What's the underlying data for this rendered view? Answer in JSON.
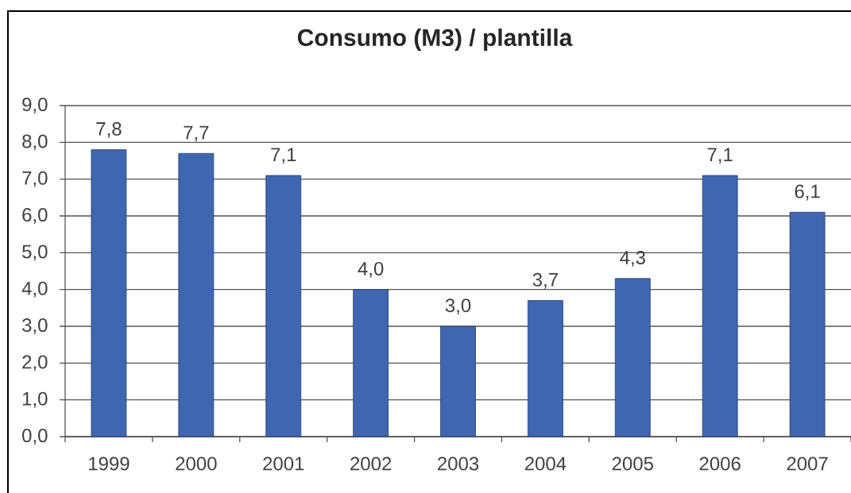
{
  "chart_data": {
    "type": "bar",
    "title": "Consumo (M3) / plantilla",
    "categories": [
      "1999",
      "2000",
      "2001",
      "2002",
      "2003",
      "2004",
      "2005",
      "2006",
      "2007"
    ],
    "values": [
      7.8,
      7.7,
      7.1,
      4.0,
      3.0,
      3.7,
      4.3,
      7.1,
      6.1
    ],
    "value_labels": [
      "7,8",
      "7,7",
      "7,1",
      "4,0",
      "3,0",
      "3,7",
      "4,3",
      "7,1",
      "6,1"
    ],
    "color": "#3f66b0",
    "ylim": [
      0,
      9
    ],
    "yticks": [
      {
        "value": 0,
        "label": "0,0"
      },
      {
        "value": 1,
        "label": "1,0"
      },
      {
        "value": 2,
        "label": "2,0"
      },
      {
        "value": 3,
        "label": "3,0"
      },
      {
        "value": 4,
        "label": "4,0"
      },
      {
        "value": 5,
        "label": "5,0"
      },
      {
        "value": 6,
        "label": "6,0"
      },
      {
        "value": 7,
        "label": "7,0"
      },
      {
        "value": 8,
        "label": "8,0"
      },
      {
        "value": 9,
        "label": "9,0"
      }
    ],
    "grid": "y"
  }
}
